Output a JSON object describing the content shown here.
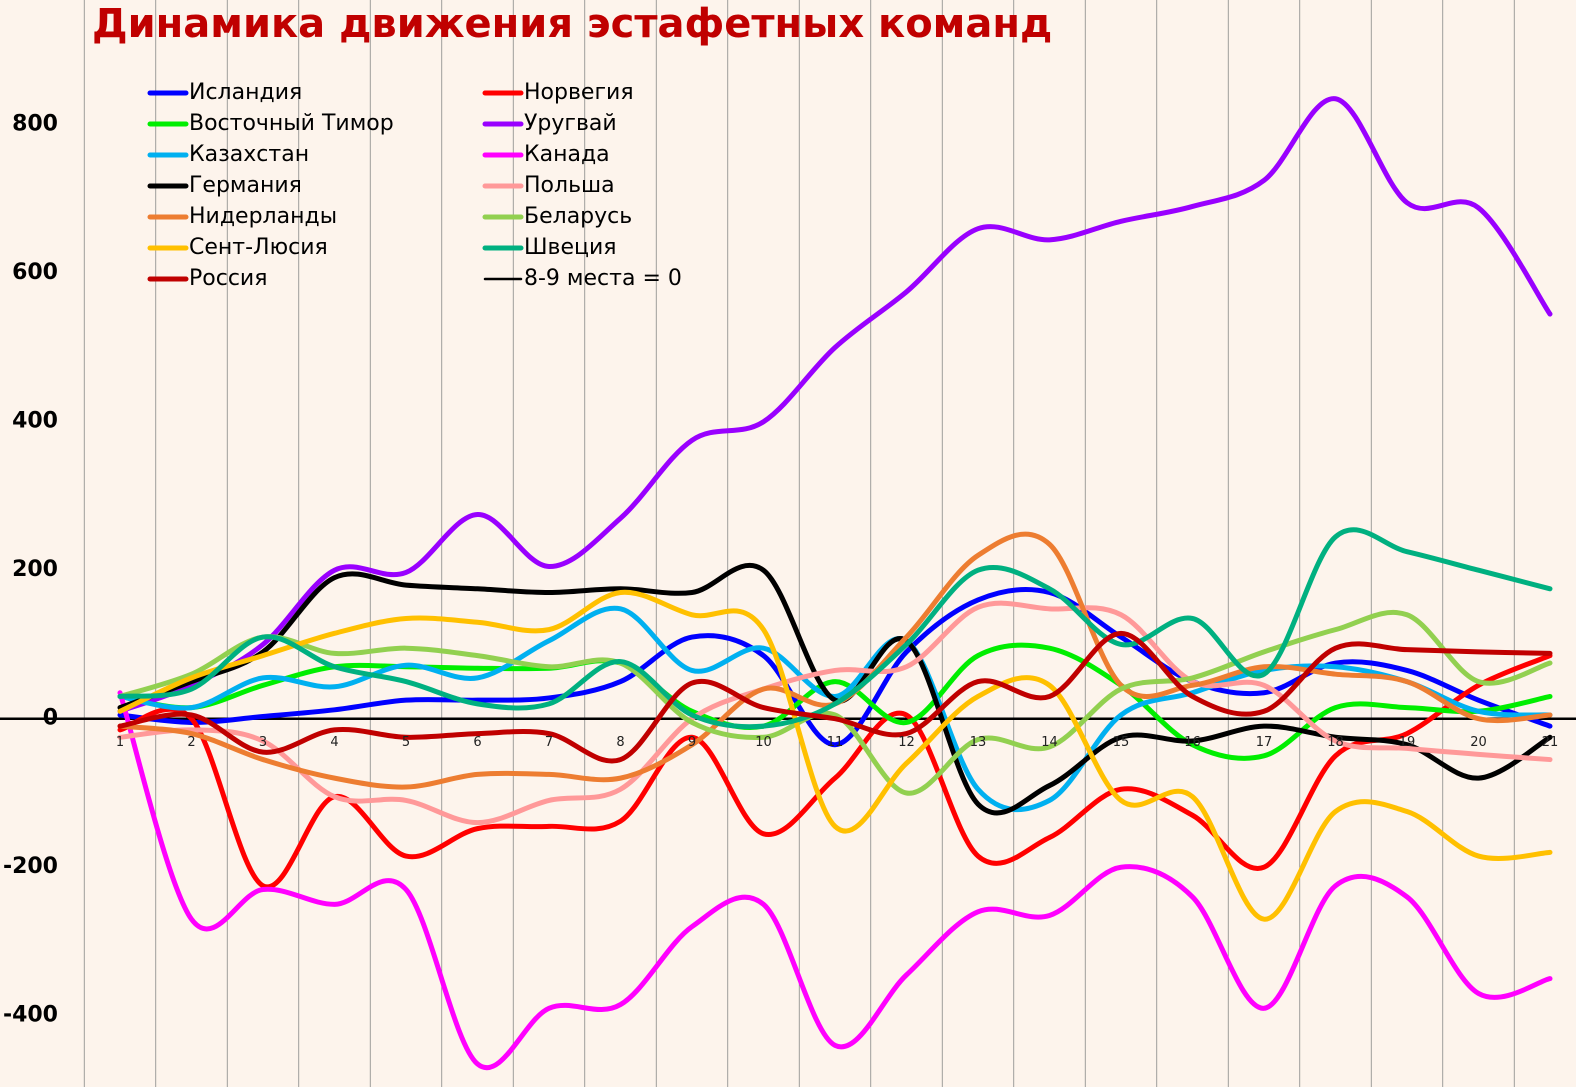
{
  "chart_data": {
    "type": "line",
    "title": "Динамика движения эстафетных команд",
    "categories": [
      "1",
      "2",
      "3",
      "4",
      "5",
      "6",
      "7",
      "8",
      "9",
      "10",
      "11",
      "12",
      "13",
      "14",
      "15",
      "16",
      "17",
      "18",
      "19",
      "20",
      "21"
    ],
    "ylim": [
      -496,
      968
    ],
    "yticks": [
      -400,
      -200,
      0,
      200,
      400,
      600,
      800
    ],
    "smooth": true,
    "series": [
      {
        "name": "Исландия",
        "color": "#0000ff",
        "values": [
          5,
          -5,
          3,
          12,
          25,
          25,
          28,
          50,
          110,
          85,
          -35,
          90,
          160,
          170,
          110,
          50,
          35,
          75,
          65,
          25,
          -10
        ]
      },
      {
        "name": "Норвегия",
        "color": "#ff0000",
        "values": [
          -15,
          0,
          -225,
          -105,
          -185,
          -148,
          -145,
          -138,
          -25,
          -155,
          -80,
          5,
          -185,
          -160,
          -95,
          -130,
          -200,
          -50,
          -20,
          45,
          85
        ]
      },
      {
        "name": "Восточный Тимор",
        "color": "#00ee00",
        "values": [
          30,
          15,
          45,
          70,
          70,
          68,
          68,
          75,
          10,
          -10,
          50,
          -5,
          85,
          95,
          45,
          -35,
          -50,
          15,
          15,
          10,
          30
        ]
      },
      {
        "name": "Уругвай",
        "color": "#9900ff",
        "values": [
          10,
          45,
          100,
          200,
          197,
          275,
          205,
          270,
          375,
          400,
          500,
          575,
          660,
          645,
          670,
          690,
          725,
          835,
          695,
          688,
          545
        ]
      },
      {
        "name": "Казахстан",
        "color": "#00b0f0",
        "values": [
          30,
          15,
          55,
          43,
          72,
          55,
          105,
          148,
          65,
          95,
          30,
          105,
          -95,
          -110,
          5,
          35,
          65,
          70,
          50,
          10,
          5
        ]
      },
      {
        "name": "Канада",
        "color": "#ff00ff",
        "values": [
          35,
          -270,
          -230,
          -250,
          -230,
          -465,
          -390,
          -385,
          -280,
          -250,
          -440,
          -345,
          -260,
          -265,
          -200,
          -240,
          -390,
          -225,
          -240,
          -370,
          -350
        ]
      },
      {
        "name": "Германия",
        "color": "#000000",
        "values": [
          15,
          50,
          90,
          190,
          180,
          175,
          170,
          175,
          170,
          200,
          25,
          105,
          -115,
          -90,
          -25,
          -30,
          -10,
          -25,
          -35,
          -80,
          -25
        ]
      },
      {
        "name": "Польша",
        "color": "#ff9999",
        "values": [
          -25,
          -15,
          -30,
          -105,
          -110,
          -140,
          -110,
          -95,
          0,
          40,
          65,
          70,
          150,
          148,
          140,
          50,
          45,
          -30,
          -40,
          -48,
          -55
        ]
      },
      {
        "name": "Нидерланды",
        "color": "#ed7d31",
        "values": [
          -10,
          -20,
          -55,
          -80,
          -92,
          -75,
          -75,
          -80,
          -35,
          40,
          20,
          110,
          220,
          235,
          45,
          45,
          70,
          60,
          50,
          0,
          5
        ]
      },
      {
        "name": "Беларусь",
        "color": "#92d050",
        "values": [
          30,
          60,
          110,
          88,
          95,
          85,
          70,
          75,
          -5,
          -25,
          5,
          -100,
          -28,
          -38,
          40,
          55,
          90,
          120,
          140,
          50,
          75
        ]
      },
      {
        "name": "Сент-Люсия",
        "color": "#ffc000",
        "values": [
          10,
          55,
          85,
          115,
          135,
          130,
          120,
          170,
          140,
          120,
          -145,
          -60,
          30,
          45,
          -110,
          -105,
          -270,
          -125,
          -125,
          -185,
          -180
        ]
      },
      {
        "name": "Швеция",
        "color": "#00b080",
        "values": [
          30,
          40,
          110,
          70,
          50,
          20,
          20,
          77,
          5,
          -10,
          20,
          100,
          200,
          175,
          100,
          135,
          60,
          245,
          225,
          200,
          175
        ]
      },
      {
        "name": "Россия",
        "color": "#c00000",
        "values": [
          -10,
          5,
          -45,
          -15,
          -25,
          -20,
          -20,
          -55,
          48,
          15,
          0,
          -20,
          50,
          30,
          115,
          30,
          10,
          95,
          93,
          90,
          88
        ]
      }
    ],
    "reference_line": {
      "name": "8-9 места = 0",
      "value": 0,
      "color": "#000000"
    }
  }
}
